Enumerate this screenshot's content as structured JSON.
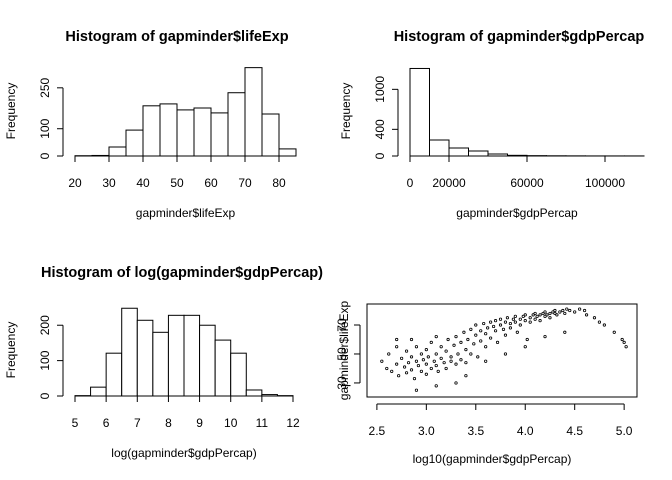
{
  "chart_data": [
    {
      "type": "histogram",
      "title": "Histogram of gapminder$lifeExp",
      "xlabel": "gapminder$lifeExp",
      "ylabel": "Frequency",
      "bins": [
        20,
        25,
        30,
        35,
        40,
        45,
        50,
        55,
        60,
        65,
        70,
        75,
        80,
        85
      ],
      "values": [
        1,
        2,
        33,
        95,
        184,
        191,
        169,
        176,
        158,
        232,
        324,
        154,
        26
      ],
      "xlim": [
        20,
        85
      ],
      "ylim": [
        0,
        330
      ],
      "xticks": [
        20,
        30,
        40,
        50,
        60,
        70,
        80
      ],
      "yticks": [
        0,
        100,
        250
      ],
      "color": "#ffffff"
    },
    {
      "type": "histogram",
      "title": "Histogram of gapminder$gdpPercap",
      "xlabel": "gapminder$gdpPercap",
      "ylabel": "Frequency",
      "bins": [
        0,
        10000,
        20000,
        30000,
        40000,
        50000,
        60000,
        70000,
        80000,
        90000,
        100000,
        110000,
        120000
      ],
      "values": [
        1313,
        240,
        120,
        75,
        30,
        10,
        5,
        3,
        2,
        1,
        1,
        1
      ],
      "xlim": [
        0,
        120000
      ],
      "ylim": [
        0,
        1350
      ],
      "xticks": [
        0,
        20000,
        60000,
        100000
      ],
      "yticks": [
        0,
        400,
        1000
      ],
      "color": "#ffffff"
    },
    {
      "type": "histogram",
      "title": "Histogram of log(gapminder$gdpPercap)",
      "xlabel": "log(gapminder$gdpPercap)",
      "ylabel": "Frequency",
      "bins": [
        5,
        5.5,
        6,
        6.5,
        7,
        7.5,
        8,
        8.5,
        9,
        9.5,
        10,
        10.5,
        11,
        11.5,
        12
      ],
      "values": [
        1,
        25,
        121,
        248,
        214,
        180,
        228,
        228,
        200,
        158,
        121,
        17,
        4,
        1
      ],
      "xlim": [
        5,
        12
      ],
      "ylim": [
        0,
        260
      ],
      "xticks": [
        5,
        6,
        7,
        8,
        9,
        10,
        11,
        12
      ],
      "yticks": [
        0,
        100,
        200
      ],
      "color": "#ffffff"
    },
    {
      "type": "scatter",
      "xlabel": "log10(gapminder$gdpPercap)",
      "ylabel": "gapminder$lifeExp",
      "xlim": [
        2.4,
        5.13
      ],
      "ylim": [
        20.3,
        84.5
      ],
      "xticks": [
        {
          "value": 2.5,
          "label": "2.5"
        },
        {
          "value": 3,
          "label": "3.0"
        },
        {
          "value": 3.5,
          "label": "3.5"
        },
        {
          "value": 4,
          "label": "4.0"
        },
        {
          "value": 4.5,
          "label": "4.5"
        },
        {
          "value": 5,
          "label": "5.0"
        }
      ],
      "yticks": [
        30,
        50,
        70
      ],
      "color": "#000000",
      "x": [
        2.55,
        2.6,
        2.62,
        2.65,
        2.7,
        2.7,
        2.72,
        2.75,
        2.78,
        2.8,
        2.8,
        2.82,
        2.85,
        2.85,
        2.88,
        2.9,
        2.9,
        2.92,
        2.95,
        2.95,
        2.97,
        3.0,
        3.0,
        3.0,
        3.02,
        3.05,
        3.05,
        3.08,
        3.1,
        3.1,
        3.12,
        3.15,
        3.15,
        3.18,
        3.2,
        3.2,
        3.22,
        3.25,
        3.25,
        3.28,
        3.3,
        3.3,
        3.32,
        3.35,
        3.35,
        3.38,
        3.4,
        3.4,
        3.42,
        3.45,
        3.45,
        3.48,
        3.5,
        3.5,
        3.52,
        3.55,
        3.55,
        3.58,
        3.6,
        3.6,
        3.62,
        3.65,
        3.65,
        3.68,
        3.7,
        3.7,
        3.72,
        3.75,
        3.75,
        3.78,
        3.8,
        3.8,
        3.82,
        3.85,
        3.85,
        3.88,
        3.9,
        3.9,
        3.92,
        3.95,
        3.95,
        3.98,
        4.0,
        4.0,
        4.02,
        4.05,
        4.05,
        4.08,
        4.1,
        4.1,
        4.12,
        4.15,
        4.15,
        4.18,
        4.2,
        4.2,
        4.22,
        4.25,
        4.25,
        4.28,
        4.3,
        4.3,
        4.32,
        4.35,
        4.38,
        4.4,
        4.42,
        4.45,
        4.5,
        4.55,
        4.6,
        4.62,
        4.7,
        4.75,
        4.8,
        4.9,
        4.98,
        5.0,
        5.02,
        3.3,
        3.1,
        2.9,
        3.4,
        4.2,
        4.4,
        3.6,
        3.8,
        4.0,
        2.85,
        3.1,
        2.7
      ],
      "y": [
        45,
        40,
        50,
        38,
        43,
        55,
        35,
        47,
        41,
        52,
        37,
        44,
        48,
        39,
        33,
        45,
        55,
        42,
        50,
        38,
        46,
        43,
        53,
        36,
        48,
        40,
        58,
        45,
        50,
        42,
        38,
        47,
        55,
        44,
        52,
        40,
        60,
        48,
        45,
        56,
        43,
        62,
        50,
        58,
        46,
        65,
        53,
        44,
        60,
        67,
        50,
        57,
        63,
        70,
        48,
        66,
        59,
        71,
        64,
        55,
        68,
        72,
        61,
        69,
        66,
        73,
        58,
        70,
        74,
        67,
        72,
        63,
        75,
        71,
        68,
        74,
        72,
        76,
        65,
        74,
        70,
        76,
        73,
        77,
        60,
        75,
        72,
        77,
        74,
        78,
        76,
        77,
        73,
        78,
        76,
        79,
        77,
        78,
        75,
        79,
        78,
        80,
        77,
        79,
        80,
        78,
        81,
        80,
        79,
        81,
        80,
        77,
        75,
        72,
        70,
        65,
        60,
        58,
        55,
        30,
        28,
        25,
        35,
        62,
        65,
        45,
        50,
        55,
        60,
        62,
        60
      ]
    }
  ]
}
